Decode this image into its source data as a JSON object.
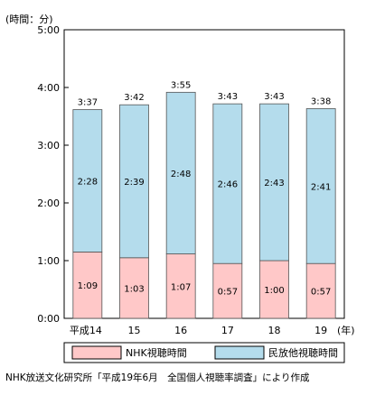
{
  "chart_data": {
    "type": "bar",
    "stacked": true,
    "unit_label": "(時間：分)",
    "x_unit": "(年)",
    "categories": [
      "平成14",
      "15",
      "16",
      "17",
      "18",
      "19"
    ],
    "series": [
      {
        "name": "NHK視聴時間",
        "color": "#ffc8c8",
        "values": [
          69,
          63,
          67,
          57,
          60,
          57
        ],
        "labels": [
          "1:09",
          "1:03",
          "1:07",
          "0:57",
          "1:00",
          "0:57"
        ]
      },
      {
        "name": "民放他視聴時間",
        "color": "#b4dcec",
        "values": [
          148,
          159,
          168,
          166,
          163,
          161
        ],
        "labels": [
          "2:28",
          "2:39",
          "2:48",
          "2:46",
          "2:43",
          "2:41"
        ]
      }
    ],
    "totals": [
      217,
      222,
      235,
      223,
      223,
      218
    ],
    "total_labels": [
      "3:37",
      "3:42",
      "3:55",
      "3:43",
      "3:43",
      "3:38"
    ],
    "yticks": [
      0,
      60,
      120,
      180,
      240,
      300
    ],
    "ytick_labels": [
      "0:00",
      "1:00",
      "2:00",
      "3:00",
      "4:00",
      "5:00"
    ],
    "ylim": [
      0,
      300
    ],
    "grid": false,
    "legend_position": "bottom"
  },
  "source": "NHK放送文化研究所「平成19年6月　全国個人視聴率調査」により作成"
}
